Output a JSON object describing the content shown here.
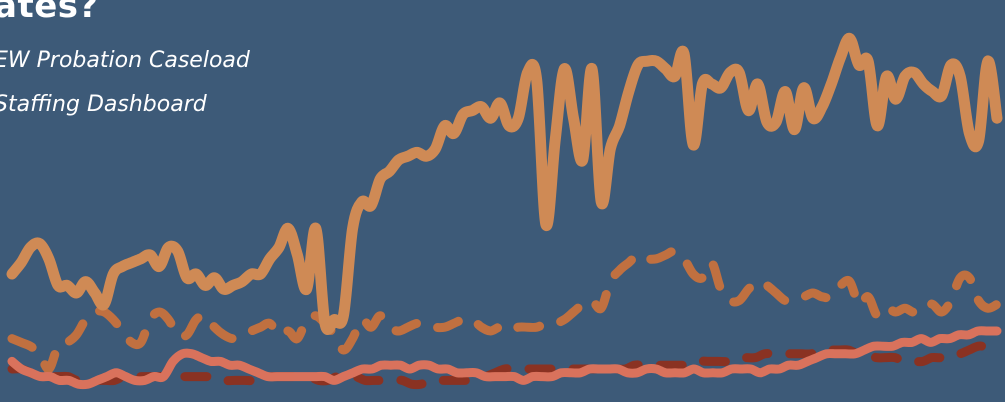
{
  "header": {
    "title": "ates?",
    "subtitle_lines": [
      "EW Probation Caseload",
      " Staffing Dashboard"
    ]
  },
  "chart_data": {
    "type": "line",
    "title": "",
    "xlabel": "",
    "ylabel": "",
    "ylim": [
      0,
      100
    ],
    "grid": false,
    "legend": "none",
    "series": [
      {
        "style": "solid",
        "color": "#cf8a55",
        "values": [
          30,
          33,
          37,
          38,
          34,
          27,
          27,
          25,
          28,
          25,
          22,
          30,
          32,
          33,
          34,
          35,
          32,
          37,
          36,
          29,
          30,
          27,
          29,
          26,
          27,
          28,
          30,
          30,
          34,
          37,
          42,
          35,
          26,
          42,
          17,
          18,
          19,
          42,
          49,
          48,
          55,
          57,
          60,
          61,
          62,
          61,
          63,
          69,
          67,
          72,
          73,
          74,
          71,
          75,
          69,
          71,
          83,
          81,
          43,
          65,
          84,
          71,
          60,
          84,
          49,
          63,
          69,
          78,
          85,
          86,
          86,
          84,
          82,
          88,
          64,
          80,
          80,
          79,
          83,
          83,
          73,
          80,
          70,
          70,
          78,
          68,
          79,
          71,
          74,
          80,
          87,
          92,
          85,
          86,
          69,
          82,
          76,
          82,
          83,
          80,
          78,
          77,
          85,
          82,
          67,
          65,
          86,
          71
        ]
      },
      {
        "style": "dashed",
        "color": "#c07040",
        "values": [
          13,
          12,
          11,
          9,
          5,
          11,
          12,
          14,
          18,
          20,
          20,
          18,
          15,
          12,
          12,
          18,
          20,
          18,
          14,
          14,
          18,
          19,
          16,
          14,
          13,
          14,
          15,
          16,
          17,
          14,
          15,
          13,
          18,
          19,
          17,
          14,
          10,
          13,
          18,
          16,
          19,
          16,
          15,
          16,
          17,
          17,
          16,
          16,
          17,
          18,
          18,
          16,
          15,
          16,
          15,
          16,
          16,
          16,
          17,
          17,
          18,
          20,
          22,
          23,
          21,
          28,
          31,
          33,
          35,
          34,
          34,
          35,
          36,
          34,
          30,
          29,
          33,
          26,
          23,
          23,
          26,
          28,
          27,
          25,
          23,
          23,
          24,
          25,
          24,
          24,
          27,
          28,
          22,
          24,
          19,
          21,
          20,
          21,
          20,
          22,
          22,
          20,
          23,
          29,
          29,
          23,
          21,
          22
        ]
      },
      {
        "style": "solid",
        "color": "#d9725c",
        "values": [
          7,
          5,
          4,
          3,
          3,
          2,
          2,
          1,
          1,
          2,
          3,
          4,
          3,
          2,
          2,
          3,
          3,
          7,
          9,
          9,
          8,
          7,
          7,
          6,
          6,
          5,
          4,
          3,
          3,
          3,
          3,
          3,
          3,
          3,
          2,
          3,
          4,
          5,
          5,
          6,
          6,
          6,
          5,
          6,
          6,
          5,
          5,
          4,
          4,
          4,
          3,
          3,
          3,
          3,
          2,
          3,
          3,
          3,
          4,
          4,
          4,
          5,
          5,
          5,
          5,
          4,
          4,
          5,
          5,
          4,
          4,
          4,
          5,
          4,
          4,
          4,
          5,
          5,
          5,
          4,
          5,
          5,
          6,
          6,
          7,
          8,
          9,
          9,
          9,
          9,
          10,
          11,
          11,
          11,
          12,
          12,
          13,
          12,
          13,
          13,
          14,
          14,
          15,
          15,
          15
        ]
      },
      {
        "style": "dashed",
        "color": "#8a3222",
        "values": [
          5,
          5,
          4,
          3,
          3,
          3,
          3,
          2,
          2,
          2,
          2,
          2,
          3,
          3,
          3,
          3,
          3,
          3,
          3,
          3,
          3,
          3,
          3,
          2,
          2,
          2,
          2,
          3,
          3,
          3,
          3,
          3,
          3,
          2,
          2,
          3,
          3,
          3,
          2,
          2,
          2,
          2,
          2,
          1,
          1,
          2,
          2,
          2,
          2,
          2,
          2,
          3,
          4,
          5,
          5,
          5,
          5,
          5,
          5,
          5,
          5,
          5,
          5,
          5,
          5,
          5,
          5,
          6,
          6,
          6,
          6,
          6,
          6,
          6,
          7,
          7,
          7,
          7,
          8,
          8,
          8,
          9,
          9,
          9,
          9,
          9,
          9,
          10,
          10,
          10,
          10,
          9,
          9,
          8,
          8,
          8,
          7,
          7,
          7,
          8,
          8,
          9,
          9,
          10,
          11,
          11,
          12
        ]
      }
    ]
  }
}
